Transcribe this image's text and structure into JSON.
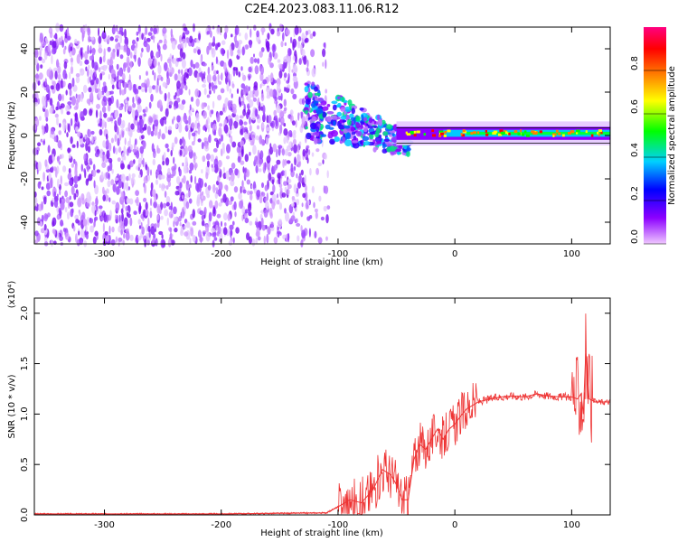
{
  "title": "C2E4.2023.083.11.06.R12",
  "chart_data": [
    {
      "type": "heatmap",
      "xlabel": "Height of straight line (km)",
      "ylabel": "Frequency (Hz)",
      "xlim": [
        -360,
        133
      ],
      "ylim": [
        -50,
        50
      ],
      "xticks": [
        -300,
        -200,
        -100,
        0,
        100
      ],
      "yticks": [
        -40,
        -20,
        0,
        20,
        40
      ],
      "colorbar": {
        "label": "Normalized spectral amplitude",
        "range": [
          0.0,
          1.0
        ],
        "ticks": [
          "0.0",
          "0.2",
          "0.4",
          "0.6",
          "0.8"
        ],
        "tick_values": [
          0.0,
          0.2,
          0.4,
          0.6,
          0.8
        ],
        "colors": [
          "#f0c8ff",
          "#8c00ff",
          "#0000ff",
          "#00d0ff",
          "#00ff00",
          "#ffff00",
          "#ff8000",
          "#ff0000",
          "#ff0080"
        ]
      },
      "regions": [
        {
          "name": "noise",
          "x_range": [
            -360,
            -108
          ],
          "freq_range": [
            -50,
            50
          ],
          "amplitude": 0.1
        },
        {
          "name": "transition",
          "x_range": [
            -128,
            -40
          ],
          "freq_center": [
            12,
            5,
            -2,
            -4
          ],
          "amplitude": 0.3
        },
        {
          "name": "signal",
          "x_range": [
            -50,
            133
          ],
          "freq_center": 1,
          "amplitude": 0.55
        }
      ]
    },
    {
      "type": "line",
      "xlabel": "Height of straight line (km)",
      "ylabel": "SNR (10 * v/v)",
      "multiplier": "(x10⁴)",
      "xlim": [
        -360,
        133
      ],
      "ylim": [
        0,
        2.15
      ],
      "xticks": [
        -300,
        -200,
        -100,
        0,
        100
      ],
      "yticks": [
        "0.0",
        "0.5",
        "1.0",
        "1.5",
        "2.0"
      ],
      "ytick_values": [
        0,
        0.5,
        1.0,
        1.5,
        2.0
      ],
      "series": [
        {
          "color": "#ee3333",
          "x": [
            -360,
            -300,
            -200,
            -110,
            -100,
            -90,
            -80,
            -70,
            -62,
            -55,
            -50,
            -45,
            -40,
            -35,
            -30,
            -25,
            -20,
            -15,
            -10,
            -5,
            0,
            5,
            10,
            20,
            30,
            40,
            50,
            60,
            70,
            80,
            90,
            100,
            105,
            108,
            110,
            112,
            115,
            120,
            133
          ],
          "y": [
            0.01,
            0.01,
            0.01,
            0.02,
            0.08,
            0.15,
            0.12,
            0.25,
            0.45,
            0.4,
            0.3,
            0.15,
            0.15,
            0.55,
            0.7,
            0.65,
            0.75,
            0.85,
            0.75,
            0.85,
            0.9,
            0.98,
            1.05,
            1.12,
            1.15,
            1.17,
            1.18,
            1.17,
            1.2,
            1.18,
            1.17,
            1.17,
            1.15,
            1.2,
            1.0,
            1.6,
            1.15,
            1.12,
            1.12
          ]
        }
      ]
    }
  ]
}
